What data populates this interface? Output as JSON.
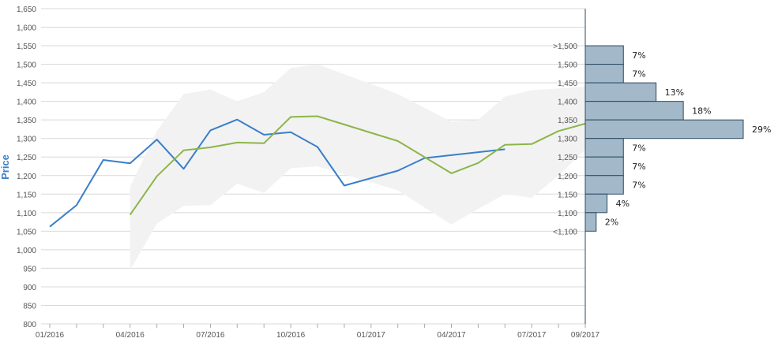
{
  "chart_data": {
    "type": "line",
    "ylabel": "Price",
    "ylim": [
      800,
      1650
    ],
    "y_ticks": [
      800,
      850,
      900,
      950,
      1000,
      1050,
      1100,
      1150,
      1200,
      1250,
      1300,
      1350,
      1400,
      1450,
      1500,
      1550,
      1600,
      1650
    ],
    "y_tick_labels": [
      "800",
      "850",
      "900",
      "950",
      "1,000",
      "1,050",
      "1,100",
      "1,150",
      "1,200",
      "1,250",
      "1,300",
      "1,350",
      "1,400",
      "1,450",
      "1,500",
      "1,550",
      "1,600",
      "1,650"
    ],
    "x_ticks": [
      "2016-01",
      "2016-04",
      "2016-07",
      "2016-10",
      "2017-01",
      "2017-04",
      "2017-07",
      "2017-09"
    ],
    "x_tick_labels": [
      "01/2016",
      "04/2016",
      "07/2016",
      "10/2016",
      "01/2017",
      "04/2017",
      "07/2017",
      "09/2017"
    ],
    "xlim": [
      "2016-01",
      "2017-09"
    ],
    "grid": true,
    "colors": {
      "actual": "#3a7fc8",
      "forecast": "#8db54a",
      "band": "#f2f2f2",
      "hist_fill": "#a3b9c9",
      "hist_stroke": "#2c4a62",
      "axis": "#9aa8b4",
      "grid": "#d8d8d8",
      "ylabel": "#3a7fc8"
    },
    "series": [
      {
        "key": "actual",
        "x": [
          "2016-01",
          "2016-02",
          "2016-03",
          "2016-04",
          "2016-05",
          "2016-06",
          "2016-07",
          "2016-08",
          "2016-09",
          "2016-10",
          "2016-11",
          "2016-12",
          "2017-02",
          "2017-03",
          "2017-06"
        ],
        "values": [
          1062,
          1120,
          1242,
          1233,
          1297,
          1218,
          1322,
          1351,
          1310,
          1317,
          1277,
          1173,
          1213,
          1247,
          1271
        ]
      },
      {
        "key": "forecast",
        "x": [
          "2016-04",
          "2016-05",
          "2016-06",
          "2016-07",
          "2016-08",
          "2016-09",
          "2016-10",
          "2016-11",
          "2017-02",
          "2017-04",
          "2017-05",
          "2017-06",
          "2017-07",
          "2017-08",
          "2017-09"
        ],
        "values": [
          1094,
          1198,
          1268,
          1276,
          1289,
          1287,
          1358,
          1360,
          1293,
          1206,
          1234,
          1283,
          1285,
          1320,
          1340
        ]
      }
    ],
    "band": {
      "x": [
        "2016-04",
        "2016-05",
        "2016-06",
        "2016-07",
        "2016-08",
        "2016-09",
        "2016-10",
        "2016-11",
        "2017-02",
        "2017-04",
        "2017-05",
        "2017-06",
        "2017-07",
        "2017-08",
        "2017-09"
      ],
      "upper": [
        1170,
        1320,
        1420,
        1432,
        1400,
        1425,
        1490,
        1500,
        1420,
        1345,
        1350,
        1413,
        1430,
        1435,
        1440
      ],
      "lower": [
        945,
        1070,
        1118,
        1120,
        1178,
        1153,
        1220,
        1225,
        1160,
        1068,
        1110,
        1150,
        1140,
        1200,
        1270
      ]
    },
    "histogram": {
      "bins": [
        {
          "label": ">1,500",
          "y0": 1500,
          "y1": 1550,
          "percent": 7,
          "percent_label": "7%"
        },
        {
          "label": "1,500",
          "y0": 1450,
          "y1": 1500,
          "percent": 7,
          "percent_label": "7%"
        },
        {
          "label": "1,450",
          "y0": 1400,
          "y1": 1450,
          "percent": 13,
          "percent_label": "13%"
        },
        {
          "label": "1,400",
          "y0": 1350,
          "y1": 1400,
          "percent": 18,
          "percent_label": "18%"
        },
        {
          "label": "1,350",
          "y0": 1300,
          "y1": 1350,
          "percent": 29,
          "percent_label": "29%"
        },
        {
          "label": "1,300",
          "y0": 1250,
          "y1": 1300,
          "percent": 7,
          "percent_label": "7%"
        },
        {
          "label": "1,250",
          "y0": 1200,
          "y1": 1250,
          "percent": 7,
          "percent_label": "7%"
        },
        {
          "label": "1,200",
          "y0": 1150,
          "y1": 1200,
          "percent": 7,
          "percent_label": "7%"
        },
        {
          "label": "1,150",
          "y0": 1100,
          "y1": 1150,
          "percent": 4,
          "percent_label": "4%"
        },
        {
          "label": "1,100",
          "y0": 1050,
          "y1": 1100,
          "percent": 2,
          "percent_label": "2%"
        }
      ],
      "extra_labels": [
        {
          "label": "<1,100",
          "y": 1050
        }
      ]
    }
  }
}
